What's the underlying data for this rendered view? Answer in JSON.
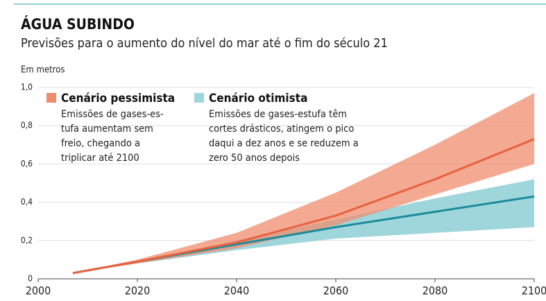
{
  "chart_data": {
    "type": "band-line",
    "title": "ÁGUA SUBINDO",
    "subtitle": "Previsões para o aumento do nível do mar até o fim do século 21",
    "y_label": "Em metros",
    "x": [
      2007,
      2020,
      2040,
      2060,
      2080,
      2100
    ],
    "xlim": [
      2000,
      2100
    ],
    "xticks": [
      2000,
      2020,
      2040,
      2060,
      2080,
      2100
    ],
    "ylim": [
      0,
      1
    ],
    "yticks": [
      0,
      {
        "value": 0.2,
        "label": "0,2"
      },
      {
        "value": 0.4,
        "label": "0,4"
      },
      {
        "value": 0.6,
        "label": "0,6"
      },
      {
        "value": 0.8,
        "label": "0,8"
      },
      {
        "value": 1,
        "label": "1,0"
      }
    ],
    "grid": true,
    "series": [
      {
        "name": "Cenário pessimista",
        "color": "#e8623e",
        "band_color": "#f08c6e",
        "description": [
          "Emissões de gases-es-",
          "tufa aumentam sem",
          "freio, chegando a",
          "triplicar até 2100"
        ],
        "values": [
          0.03,
          0.09,
          0.19,
          0.33,
          0.52,
          0.73
        ],
        "lower": [
          0.03,
          0.08,
          0.16,
          0.28,
          0.44,
          0.6
        ],
        "upper": [
          0.03,
          0.1,
          0.24,
          0.45,
          0.7,
          0.97
        ]
      },
      {
        "name": "Cenário otimista",
        "color": "#1a8a9a",
        "band_color": "#9fd6dc",
        "description": [
          "Emissões de gases-estufa têm",
          "cortes drásticos, atingem o pico",
          "daqui a dez anos e se reduzem a",
          "zero 50 anos depois"
        ],
        "values": [
          0.03,
          0.09,
          0.18,
          0.27,
          0.35,
          0.43
        ],
        "lower": [
          0.03,
          0.08,
          0.15,
          0.21,
          0.24,
          0.27
        ],
        "upper": [
          0.03,
          0.09,
          0.2,
          0.31,
          0.42,
          0.52
        ]
      }
    ]
  }
}
